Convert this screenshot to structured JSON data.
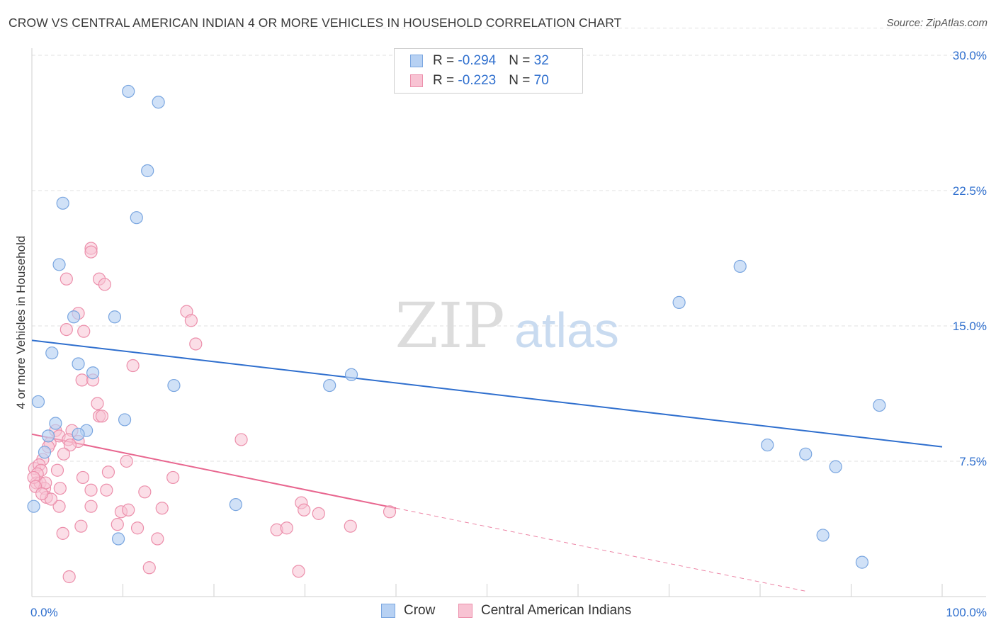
{
  "title": "CROW VS CENTRAL AMERICAN INDIAN 4 OR MORE VEHICLES IN HOUSEHOLD CORRELATION CHART",
  "source": "Source: ZipAtlas.com",
  "watermark": {
    "zip": "ZIP",
    "atlas": "atlas"
  },
  "colors": {
    "crow_fill": "#b7d1f3",
    "crow_stroke": "#7aa6e0",
    "crow_line": "#2f6fce",
    "cai_fill": "#f8c3d3",
    "cai_stroke": "#ec8fab",
    "cai_line": "#e8668f",
    "axis_label": "#2f6fce"
  },
  "legend": {
    "rows": [
      {
        "r_label": "R = ",
        "r_value": "-0.294",
        "n_label": "N = ",
        "n_value": "32"
      },
      {
        "r_label": "R = ",
        "r_value": "-0.223",
        "n_label": "N = ",
        "n_value": "70"
      }
    ]
  },
  "bottom_legend": [
    "Crow",
    "Central American Indians"
  ],
  "chart_data": {
    "type": "scatter",
    "title": "CROW VS CENTRAL AMERICAN INDIAN 4 OR MORE VEHICLES IN HOUSEHOLD CORRELATION CHART",
    "xlabel": "",
    "ylabel": "4 or more Vehicles in Household",
    "xlim": [
      0,
      100
    ],
    "ylim": [
      0,
      30
    ],
    "x_tick_labels": [
      "0.0%",
      "100.0%"
    ],
    "y_ticks": [
      7.5,
      15.0,
      22.5,
      30.0
    ],
    "y_tick_labels": [
      "7.5%",
      "15.0%",
      "22.5%",
      "30.0%"
    ],
    "series": [
      {
        "name": "Crow",
        "R": -0.294,
        "N": 32,
        "trend": {
          "x": [
            0,
            100
          ],
          "y": [
            14.2,
            8.3
          ],
          "dashed_extension": false
        },
        "points": [
          [
            10.6,
            28.0
          ],
          [
            13.9,
            27.4
          ],
          [
            12.7,
            23.6
          ],
          [
            11.5,
            21.0
          ],
          [
            3.4,
            21.8
          ],
          [
            3.0,
            18.4
          ],
          [
            4.6,
            15.5
          ],
          [
            9.1,
            15.5
          ],
          [
            2.2,
            13.5
          ],
          [
            5.1,
            12.9
          ],
          [
            6.7,
            12.4
          ],
          [
            15.6,
            11.7
          ],
          [
            0.7,
            10.8
          ],
          [
            2.6,
            9.6
          ],
          [
            10.2,
            9.8
          ],
          [
            6.0,
            9.2
          ],
          [
            5.1,
            9.0
          ],
          [
            1.8,
            8.9
          ],
          [
            1.4,
            8.0
          ],
          [
            0.2,
            5.0
          ],
          [
            22.4,
            5.1
          ],
          [
            9.5,
            3.2
          ],
          [
            32.7,
            11.7
          ],
          [
            35.1,
            12.3
          ],
          [
            71.1,
            16.3
          ],
          [
            77.8,
            18.3
          ],
          [
            80.8,
            8.4
          ],
          [
            85.0,
            7.9
          ],
          [
            88.3,
            7.2
          ],
          [
            93.1,
            10.6
          ],
          [
            86.9,
            3.4
          ],
          [
            91.2,
            1.9
          ]
        ]
      },
      {
        "name": "Central American Indians",
        "R": -0.223,
        "N": 70,
        "trend": {
          "x": [
            0,
            40
          ],
          "y": [
            9.0,
            4.9
          ],
          "dashed_extension": true,
          "dashed_to": [
            85,
            0.3
          ]
        },
        "points": [
          [
            6.5,
            19.3
          ],
          [
            6.5,
            19.1
          ],
          [
            3.8,
            17.6
          ],
          [
            7.4,
            17.6
          ],
          [
            8.0,
            17.3
          ],
          [
            17.0,
            15.8
          ],
          [
            5.1,
            15.7
          ],
          [
            17.5,
            15.3
          ],
          [
            3.8,
            14.8
          ],
          [
            5.7,
            14.7
          ],
          [
            18.0,
            14.0
          ],
          [
            11.1,
            12.8
          ],
          [
            5.5,
            12.0
          ],
          [
            6.7,
            12.0
          ],
          [
            7.2,
            10.7
          ],
          [
            7.4,
            10.0
          ],
          [
            7.7,
            10.0
          ],
          [
            4.4,
            9.2
          ],
          [
            2.6,
            9.2
          ],
          [
            3.0,
            8.9
          ],
          [
            4.0,
            8.7
          ],
          [
            5.1,
            8.6
          ],
          [
            2.0,
            8.5
          ],
          [
            1.8,
            8.3
          ],
          [
            4.2,
            8.4
          ],
          [
            23.0,
            8.7
          ],
          [
            3.5,
            7.9
          ],
          [
            1.2,
            7.6
          ],
          [
            10.4,
            7.5
          ],
          [
            0.3,
            7.1
          ],
          [
            0.8,
            7.3
          ],
          [
            1.0,
            7.0
          ],
          [
            2.8,
            7.0
          ],
          [
            8.4,
            6.9
          ],
          [
            0.6,
            6.8
          ],
          [
            0.5,
            6.3
          ],
          [
            0.9,
            6.3
          ],
          [
            1.4,
            6.0
          ],
          [
            6.5,
            5.9
          ],
          [
            3.1,
            6.0
          ],
          [
            5.6,
            6.6
          ],
          [
            8.2,
            5.9
          ],
          [
            15.5,
            6.6
          ],
          [
            1.5,
            6.3
          ],
          [
            1.6,
            5.5
          ],
          [
            12.4,
            5.8
          ],
          [
            6.5,
            5.0
          ],
          [
            3.0,
            5.0
          ],
          [
            9.8,
            4.7
          ],
          [
            10.6,
            4.8
          ],
          [
            14.3,
            4.9
          ],
          [
            29.6,
            5.2
          ],
          [
            29.9,
            4.8
          ],
          [
            31.5,
            4.6
          ],
          [
            39.3,
            4.7
          ],
          [
            5.4,
            3.9
          ],
          [
            9.4,
            4.0
          ],
          [
            11.6,
            3.8
          ],
          [
            26.9,
            3.7
          ],
          [
            28.0,
            3.8
          ],
          [
            35.0,
            3.9
          ],
          [
            3.4,
            3.5
          ],
          [
            13.8,
            3.2
          ],
          [
            12.9,
            1.6
          ],
          [
            29.3,
            1.4
          ],
          [
            4.1,
            1.1
          ],
          [
            0.2,
            6.6
          ],
          [
            2.1,
            5.4
          ],
          [
            0.4,
            6.1
          ],
          [
            1.1,
            5.7
          ]
        ]
      }
    ]
  }
}
